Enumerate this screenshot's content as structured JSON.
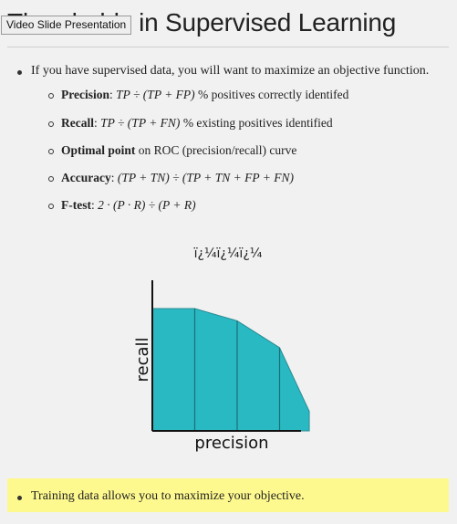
{
  "slide": {
    "title": "Thresholds in Supervised Learning",
    "tooltip": "Video Slide Presentation",
    "main_bullet": "If you have supervised data, you will want to maximize an objective function.",
    "items": [
      {
        "label": "Precision",
        "formula": "TP ÷ (TP + FP)",
        "desc": " % positives correctly identifed"
      },
      {
        "label": "Recall",
        "formula": "TP ÷ (TP + FN)",
        "desc": " % existing positives identified"
      },
      {
        "label": "Optimal point",
        "formula": "",
        "desc": " on ROC (precision/recall) curve"
      },
      {
        "label": "Accuracy",
        "formula": "(TP + TN) ÷ (TP + TN + FP + FN)",
        "desc": ""
      },
      {
        "label": "F-test",
        "formula": "2 · (P · R) ÷ (P + R)",
        "desc": ""
      }
    ],
    "bottom_bullet": "Training data allows you to maximize your objective."
  },
  "chart_data": {
    "type": "area",
    "title": "ï¿¼ï¿¼ï¿¼",
    "xlabel": "precision",
    "ylabel": "recall",
    "color": "#29b9c3",
    "x": [
      0,
      1,
      2,
      3,
      3.7
    ],
    "values": [
      1.0,
      1.0,
      0.9,
      0.68,
      0.16
    ],
    "segments": [
      1,
      2,
      3
    ]
  }
}
